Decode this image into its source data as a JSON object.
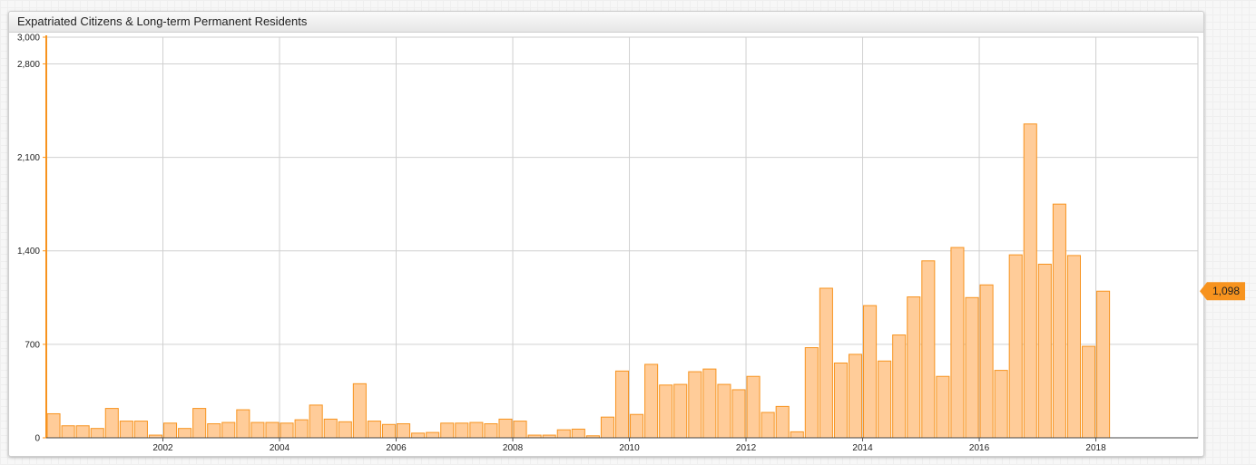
{
  "window": {
    "title": "Expatriated Citizens & Long-term Permanent Residents"
  },
  "colors": {
    "bar_fill": "#ffcc99",
    "bar_stroke": "#f7931e",
    "axis": "#f7931e",
    "grid": "#d0d0d0",
    "callout": "#f7931e"
  },
  "chart_data": {
    "type": "bar",
    "title": "Expatriated Citizens & Long-term Permanent Residents",
    "ylim": [
      0,
      3000
    ],
    "xlim": [
      "2000-01",
      "2019-10"
    ],
    "y_ticks": [
      "0",
      "700",
      "1,400",
      "2,100",
      "2,800",
      "3,000"
    ],
    "x_ticks": [
      "2002",
      "2004",
      "2006",
      "2008",
      "2010",
      "2012",
      "2014",
      "2016",
      "2018"
    ],
    "grid": true,
    "periods": [
      "2000 Q1",
      "2000 Q2",
      "2000 Q3",
      "2000 Q4",
      "2001 Q1",
      "2001 Q2",
      "2001 Q3",
      "2001 Q4",
      "2002 Q1",
      "2002 Q2",
      "2002 Q3",
      "2002 Q4",
      "2003 Q1",
      "2003 Q2",
      "2003 Q3",
      "2003 Q4",
      "2004 Q1",
      "2004 Q2",
      "2004 Q3",
      "2004 Q4",
      "2005 Q1",
      "2005 Q2",
      "2005 Q3",
      "2005 Q4",
      "2006 Q1",
      "2006 Q2",
      "2006 Q3",
      "2006 Q4",
      "2007 Q1",
      "2007 Q2",
      "2007 Q3",
      "2007 Q4",
      "2008 Q1",
      "2008 Q2",
      "2008 Q3",
      "2008 Q4",
      "2009 Q1",
      "2009 Q2",
      "2009 Q3",
      "2009 Q4",
      "2010 Q1",
      "2010 Q2",
      "2010 Q3",
      "2010 Q4",
      "2011 Q1",
      "2011 Q2",
      "2011 Q3",
      "2011 Q4",
      "2012 Q1",
      "2012 Q2",
      "2012 Q3",
      "2012 Q4",
      "2013 Q1",
      "2013 Q2",
      "2013 Q3",
      "2013 Q4",
      "2014 Q1",
      "2014 Q2",
      "2014 Q3",
      "2014 Q4",
      "2015 Q1",
      "2015 Q2",
      "2015 Q3",
      "2015 Q4",
      "2016 Q1",
      "2016 Q2",
      "2016 Q3",
      "2016 Q4",
      "2017 Q1",
      "2017 Q2",
      "2017 Q3",
      "2017 Q4",
      "2018 Q1"
    ],
    "values": [
      180,
      90,
      90,
      70,
      220,
      125,
      125,
      20,
      110,
      70,
      220,
      105,
      115,
      210,
      115,
      115,
      110,
      135,
      245,
      140,
      120,
      405,
      125,
      100,
      105,
      35,
      40,
      110,
      110,
      115,
      105,
      140,
      125,
      20,
      20,
      60,
      65,
      15,
      155,
      500,
      175,
      550,
      395,
      400,
      495,
      515,
      400,
      360,
      460,
      190,
      235,
      45,
      675,
      1120,
      560,
      625,
      990,
      575,
      770,
      1055,
      1325,
      460,
      1425,
      1050,
      1145,
      505,
      1370,
      2350,
      1300,
      1750,
      1365,
      685,
      1098
    ],
    "last_value_label": "1,098"
  }
}
